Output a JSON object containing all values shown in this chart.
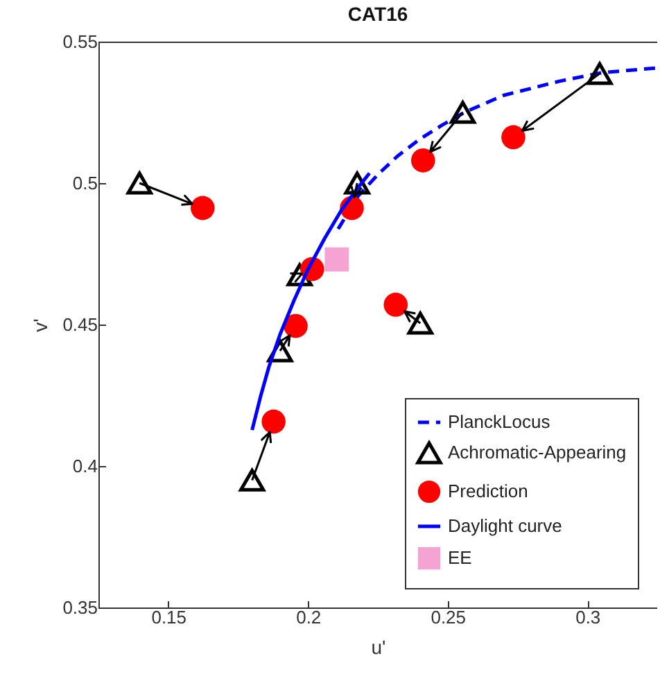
{
  "chart_data": {
    "type": "scatter",
    "title": "CAT16",
    "xlabel": "u'",
    "ylabel": "v'",
    "xlim": [
      0.125,
      0.325
    ],
    "ylim": [
      0.35,
      0.55
    ],
    "xticks": [
      0.15,
      0.2,
      0.25,
      0.3
    ],
    "yticks": [
      0.35,
      0.4,
      0.45,
      0.5,
      0.55
    ],
    "grid": false,
    "legend": "bottom right",
    "series": [
      {
        "name": "PlanckLocus",
        "type": "line",
        "line_style": "dashed",
        "marker": "none",
        "color": "#0000ff",
        "x": [
          0.2108,
          0.218,
          0.225,
          0.232,
          0.24,
          0.248,
          0.256,
          0.27,
          0.29,
          0.305,
          0.325
        ],
        "values": [
          0.4838,
          0.4955,
          0.503,
          0.5095,
          0.5155,
          0.5205,
          0.525,
          0.531,
          0.536,
          0.539,
          0.5407
        ]
      },
      {
        "name": "Achromatic-Appearing",
        "marker": "triangle",
        "color": "#000000",
        "x": [
          0.1397,
          0.3044,
          0.2554,
          0.2176,
          0.197,
          0.19,
          0.18,
          0.2402
        ],
        "values": [
          0.5,
          0.5387,
          0.525,
          0.5,
          0.4676,
          0.4407,
          0.395,
          0.4505
        ]
      },
      {
        "name": "Prediction",
        "marker": "circle",
        "color": "#ff0000",
        "x": [
          0.1623,
          0.2735,
          0.2412,
          0.2157,
          0.2015,
          0.1956,
          0.1877,
          0.2314
        ],
        "values": [
          0.4912,
          0.5162,
          0.508,
          0.4912,
          0.4696,
          0.4495,
          0.4157,
          0.457
        ]
      },
      {
        "name": "Daylight curve",
        "type": "line",
        "line_style": "solid",
        "marker": "none",
        "color": "#0000ff",
        "x": [
          0.18,
          0.183,
          0.186,
          0.19,
          0.195,
          0.2,
          0.206,
          0.212,
          0.218,
          0.222
        ],
        "values": [
          0.4127,
          0.4245,
          0.435,
          0.4465,
          0.4585,
          0.4695,
          0.4805,
          0.4905,
          0.4985,
          0.5035
        ]
      },
      {
        "name": "EE",
        "marker": "square",
        "color": "#f4a3d3",
        "x": [
          0.2103
        ],
        "values": [
          0.473
        ]
      }
    ]
  }
}
